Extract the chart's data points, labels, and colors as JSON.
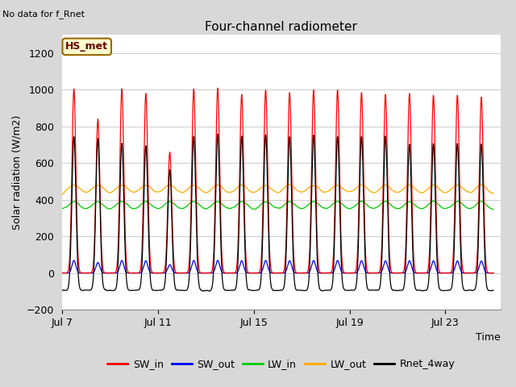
{
  "title": "Four-channel radiometer",
  "subtitle": "No data for f_Rnet",
  "xlabel": "Time",
  "ylabel": "Solar radiation (W/m2)",
  "ylim": [
    -200,
    1300
  ],
  "yticks": [
    -200,
    0,
    200,
    400,
    600,
    800,
    1000,
    1200
  ],
  "x_tick_days": [
    7,
    11,
    15,
    19,
    23
  ],
  "x_tick_labels": [
    "Jul 7",
    "Jul 11",
    "Jul 15",
    "Jul 19",
    "Jul 23"
  ],
  "colors": {
    "SW_in": "#ff0000",
    "SW_out": "#0000ff",
    "LW_in": "#00cc00",
    "LW_out": "#ffaa00",
    "Rnet_4way": "#000000"
  },
  "legend_label": "HS_met",
  "legend_bg": "#ffffcc",
  "legend_border": "#996600",
  "day_start": 7,
  "day_end": 25,
  "xlim_end": 25.3
}
